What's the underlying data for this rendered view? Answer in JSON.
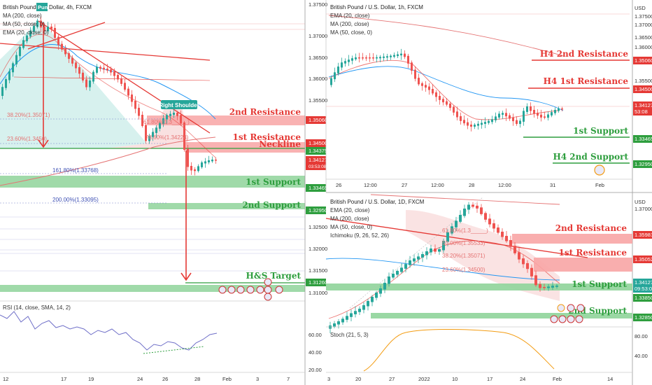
{
  "colors": {
    "up": "#26a69a",
    "down": "#ef5350",
    "resistance": "#e53935",
    "resistance_fill": "#f8a5a5",
    "support": "#2e9e3e",
    "support_fill": "#8fd49a",
    "ema": "#e53935",
    "ma50": "#2196f3",
    "ma200": "#e57373",
    "rsi": "#6f6fc8",
    "stoch": "#f39c12",
    "price_tag": "#e53935"
  },
  "left_panel": {
    "title_pre": "British Pound",
    "title_box": "Pund",
    "title_post": "Dollar, 4h, FXCM",
    "ind1": "MA (200, close)",
    "ind2": "MA (50, close, 0)",
    "ind3": "EMA (20, close, 0)",
    "labels": {
      "res2": "2nd Resistance",
      "res1": "1st Resistance",
      "neckline": "Neckline",
      "sup1": "1st Support",
      "sup2": "2nd Support",
      "target": "H&S Target",
      "shoulder": "Right Shoulder"
    },
    "fibs": [
      "38.20%(1.35071)",
      "23.60%(1.3450)",
      "61.80%(1.3_____)",
      "78.60%(1.34224)",
      "161.80%(1.33768)",
      "200.00%(1.33095)"
    ],
    "price_axis": [
      "1.37500",
      "1.37000",
      "1.36500",
      "1.36000",
      "1.35500",
      "1.35060",
      "1.34500",
      "1.34375",
      "1.34127",
      "03:53:08",
      "1.33465",
      "1.32950",
      "1.32500",
      "1.32000",
      "1.31500",
      "1.31260",
      "1.31000"
    ],
    "rsi_title": "RSI (14, close, SMA, 14, 2)",
    "rsi_axis": [
      "60.00",
      "40.00",
      "20.00"
    ],
    "x_axis": [
      "12",
      "17",
      "19",
      "24",
      "26",
      "28",
      "Feb",
      "3",
      "7"
    ]
  },
  "top_right": {
    "title": "British Pound / U.S. Dollar, 1h, FXCM",
    "ind1": "EMA (20, close)",
    "ind2": "MA (200, close)",
    "ind3": "MA (50, close, 0)",
    "currency": "USD",
    "labels": {
      "res2": "H4 2nd Resistance",
      "res1": "H4 1st Resistance",
      "sup1": "1st Support",
      "sup2": "H4 2nd Support"
    },
    "price_axis": [
      "1.37500",
      "1.37000",
      "1.36500",
      "1.36000",
      "1.35500",
      "1.35060",
      "1.34500",
      "1.34127",
      "53:08",
      "1.33465",
      "1.32950"
    ],
    "x_axis": [
      "26",
      "12:00",
      "27",
      "12:00",
      "28",
      "12:00",
      "31",
      "Feb"
    ]
  },
  "bottom_right": {
    "title": "British Pound / U.S. Dollar, 1D, FXCM",
    "ind1": "EMA (20, close)",
    "ind2": "MA (200, close)",
    "ind3": "MA (50, close, 0)",
    "ind4": "Ichimoku (9, 26, 52, 26)",
    "currency": "USD",
    "labels": {
      "res2": "2nd Resistance",
      "res1": "1st Resistance",
      "sup1": "1st Support",
      "sup2": "2nd Support"
    },
    "fibs": [
      "61.80%(1.3_____)",
      "50.00%(1.35533)",
      "38.20%(1.35071)",
      "23.60%(1.34500)"
    ],
    "price_axis": [
      "1.37000",
      "1.35981",
      "1.35052",
      "1.34127",
      "09:53:08",
      "1.33850",
      "1.32850"
    ],
    "stoch_title": "Stoch (21, 5, 3)",
    "stoch_axis": [
      "80.00",
      "40.00"
    ],
    "x_axis": [
      "3",
      "20",
      "27",
      "2022",
      "10",
      "17",
      "24",
      "Feb",
      "14"
    ]
  },
  "chart_data": [
    {
      "type": "candlestick",
      "title": "British Pound / U.S. Dollar, 4h, FXCM",
      "levels": {
        "resistance_2": 1.3506,
        "resistance_1": 1.345,
        "neckline": 1.34375,
        "last_price": 1.34127,
        "support_1": 1.33465,
        "support_2": 1.3295,
        "hs_target": 1.3126
      },
      "fibonacci": {
        "38.20%": 1.35071,
        "23.60%": 1.345,
        "78.60%": 1.34224,
        "161.80%": 1.33768,
        "200.00%": 1.33095
      },
      "pattern": "Head and Shoulders",
      "indicator": "RSI (14, close, SMA, 14, 2)"
    },
    {
      "type": "candlestick",
      "title": "British Pound / U.S. Dollar, 1h, FXCM",
      "levels": {
        "h4_resistance_2": 1.3506,
        "h4_resistance_1": 1.345,
        "last_price": 1.34127,
        "support_1": 1.33465,
        "h4_support_2": 1.3295
      }
    },
    {
      "type": "candlestick",
      "title": "British Pound / U.S. Dollar, 1D, FXCM",
      "levels": {
        "resistance_2": 1.35981,
        "resistance_1": 1.35052,
        "last_price": 1.34127,
        "support_1": 1.3385,
        "support_2": 1.3285
      },
      "fibonacci": {
        "50.00%": 1.35533,
        "38.20%": 1.35071,
        "23.60%": 1.345
      },
      "indicator": "Stoch (21, 5, 3)"
    }
  ]
}
